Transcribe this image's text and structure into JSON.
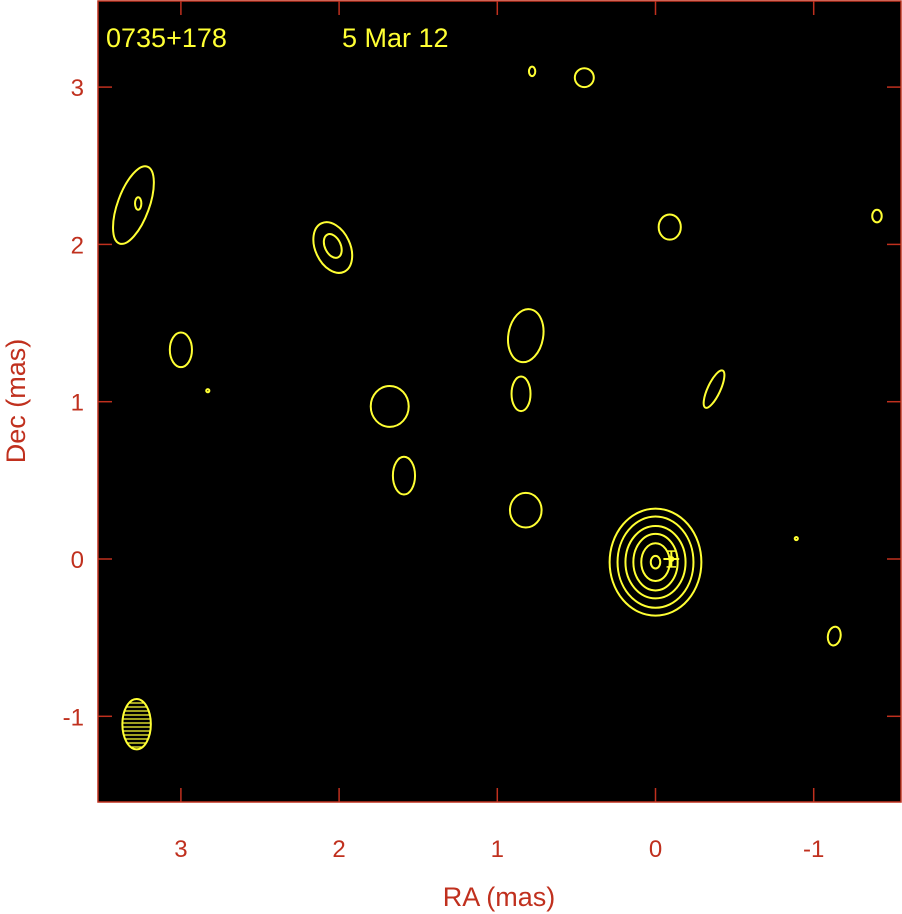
{
  "chart_data": {
    "type": "contour",
    "title": "",
    "source": "0735+178",
    "date": "5 Mar 12",
    "xlabel": "RA (mas)",
    "ylabel": "Dec (mas)",
    "xlim": [
      3.55,
      -1.55
    ],
    "ylim": [
      -1.55,
      3.55
    ],
    "xticks": [
      3,
      2,
      1,
      0,
      -1
    ],
    "yticks": [
      3,
      2,
      1,
      0,
      -1
    ],
    "x_tick_labels": [
      "3",
      "2",
      "1",
      "0",
      "-1"
    ],
    "y_tick_labels": [
      "3",
      "2",
      "1",
      "0",
      "-1"
    ],
    "background_color": "#000000",
    "contour_color": "#ffff33",
    "axis_color": "#c0301e",
    "core": {
      "ra": 0.0,
      "dec": -0.02,
      "radii_mas": [
        [
          0.29,
          0.34
        ],
        [
          0.24,
          0.29
        ],
        [
          0.19,
          0.23
        ],
        [
          0.14,
          0.18
        ],
        [
          0.09,
          0.12
        ],
        [
          0.03,
          0.04
        ]
      ]
    },
    "components": [
      {
        "ra": -0.1,
        "dec": 0.0,
        "size_mas": 0.1
      }
    ],
    "contours": [
      {
        "ra": 3.3,
        "dec": 2.25,
        "rx": 0.1,
        "ry": 0.26,
        "angle": 20
      },
      {
        "ra": 3.27,
        "dec": 2.26,
        "rx": 0.02,
        "ry": 0.04,
        "angle": 0
      },
      {
        "ra": 2.04,
        "dec": 1.98,
        "rx": 0.11,
        "ry": 0.17,
        "angle": -25
      },
      {
        "ra": 2.04,
        "dec": 1.99,
        "rx": 0.05,
        "ry": 0.08,
        "angle": -25
      },
      {
        "ra": 3.0,
        "dec": 1.33,
        "rx": 0.07,
        "ry": 0.11,
        "angle": 0
      },
      {
        "ra": 2.83,
        "dec": 1.07,
        "rx": 0.01,
        "ry": 0.01,
        "angle": 0
      },
      {
        "ra": 1.68,
        "dec": 0.97,
        "rx": 0.12,
        "ry": 0.13,
        "angle": 0
      },
      {
        "ra": 1.59,
        "dec": 0.53,
        "rx": 0.07,
        "ry": 0.12,
        "angle": 0
      },
      {
        "ra": 0.82,
        "dec": 1.42,
        "rx": 0.11,
        "ry": 0.17,
        "angle": 10
      },
      {
        "ra": 0.85,
        "dec": 1.05,
        "rx": 0.06,
        "ry": 0.11,
        "angle": 0
      },
      {
        "ra": 0.82,
        "dec": 0.31,
        "rx": 0.1,
        "ry": 0.11,
        "angle": 0
      },
      {
        "ra": 0.45,
        "dec": 3.06,
        "rx": 0.06,
        "ry": 0.06,
        "angle": 0
      },
      {
        "ra": 0.78,
        "dec": 3.1,
        "rx": 0.02,
        "ry": 0.03,
        "angle": 0
      },
      {
        "ra": -0.09,
        "dec": 2.11,
        "rx": 0.07,
        "ry": 0.08,
        "angle": 0
      },
      {
        "ra": -0.37,
        "dec": 1.08,
        "rx": 0.04,
        "ry": 0.13,
        "angle": 25
      },
      {
        "ra": -0.89,
        "dec": 0.13,
        "rx": 0.01,
        "ry": 0.01,
        "angle": 0
      },
      {
        "ra": -1.13,
        "dec": -0.49,
        "rx": 0.04,
        "ry": 0.06,
        "angle": 10
      },
      {
        "ra": -1.4,
        "dec": 2.18,
        "rx": 0.03,
        "ry": 0.04,
        "angle": 0
      }
    ],
    "beam": {
      "ra": 3.28,
      "dec": -1.05,
      "bmaj_mas": 0.32,
      "bmin_mas": 0.18,
      "pa_deg": 0
    },
    "grid": false,
    "legend": "none"
  }
}
